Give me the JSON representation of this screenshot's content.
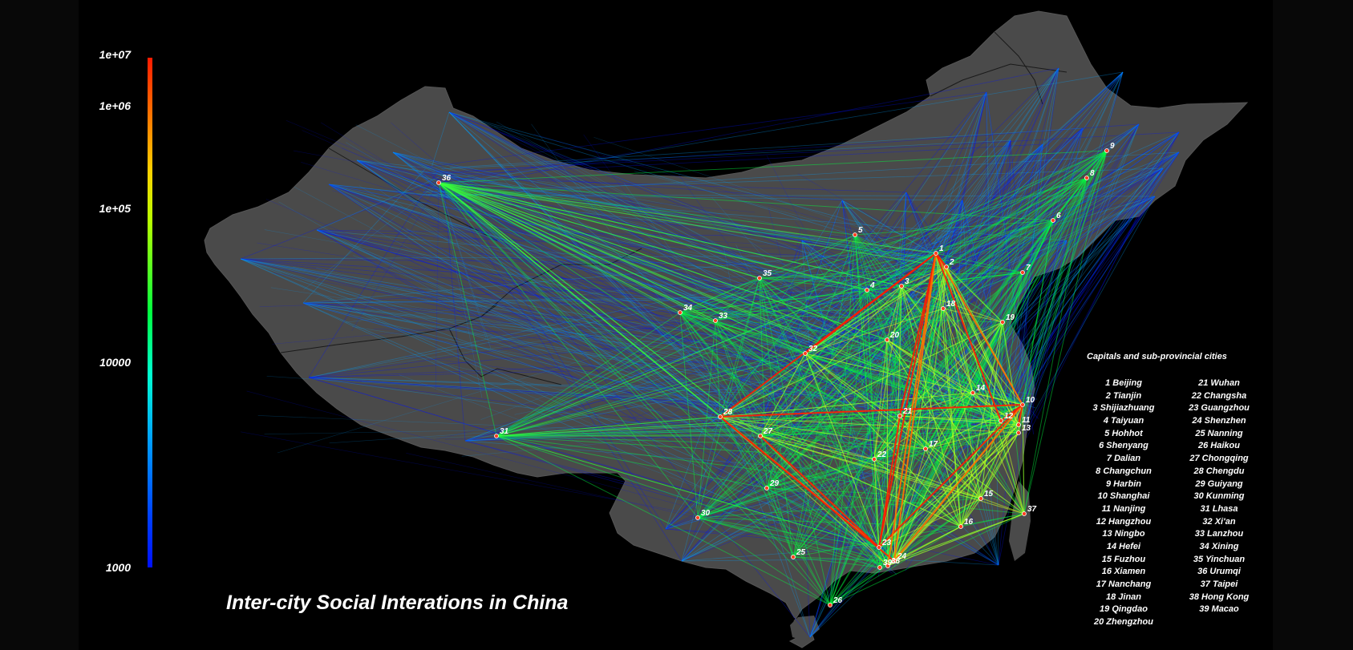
{
  "title": "Inter-city Social Interations in China",
  "colorbar": {
    "ticks": [
      "1e+07",
      "1e+06",
      "1e+05",
      "10000",
      "1000"
    ],
    "colors": [
      "#ff1a00",
      "#ffd000",
      "#00ff40",
      "#00a0ff",
      "#0010ff"
    ]
  },
  "legend": {
    "title": "Capitals and sub-provincial cities",
    "cities": [
      "1 Beijing",
      "2 Tianjin",
      "3 Shijiazhuang",
      "4 Taiyuan",
      "5 Hohhot",
      "6 Shenyang",
      "7 Dalian",
      "8 Changchun",
      "9 Harbin",
      "10 Shanghai",
      "11 Nanjing",
      "12 Hangzhou",
      "13 Ningbo",
      "14 Hefei",
      "15 Fuzhou",
      "16 Xiamen",
      "17 Nanchang",
      "18 Jinan",
      "19 Qingdao",
      "20 Zhengzhou",
      "21 Wuhan",
      "22 Changsha",
      "23 Guangzhou",
      "24 Shenzhen",
      "25 Nanning",
      "26 Haikou",
      "27 Chongqing",
      "28 Chengdu",
      "29 Guiyang",
      "30 Kunming",
      "31 Lhasa",
      "32 Xi'an",
      "33 Lanzhou",
      "34 Xining",
      "35 Yinchuan",
      "36 Urumqi",
      "37 Taipei",
      "38 Hong Kong",
      "39 Macao"
    ]
  },
  "map_labels": [
    "1",
    "2",
    "3",
    "4",
    "5",
    "6",
    "7",
    "8",
    "9",
    "10",
    "11",
    "12",
    "13",
    "14",
    "15",
    "16",
    "17",
    "18",
    "19",
    "20",
    "21",
    "22",
    "23",
    "24",
    "25",
    "26",
    "27",
    "28",
    "29",
    "30",
    "31",
    "32",
    "33",
    "34",
    "35",
    "36",
    "37",
    "38",
    "39"
  ],
  "colors": {
    "background": "#000000",
    "land": "#4a4a4a",
    "border": "#1a1a1a",
    "text": "#ffffff"
  }
}
